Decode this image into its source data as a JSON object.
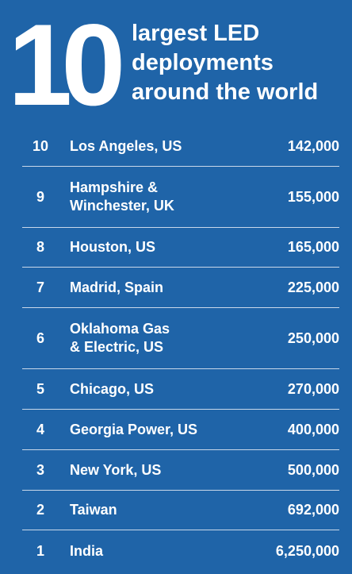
{
  "header": {
    "big_number": "10",
    "title": "largest LED\ndeployments\naround the world"
  },
  "rows": [
    {
      "rank": "10",
      "place": "Los Angeles, US",
      "count": "142,000"
    },
    {
      "rank": "9",
      "place": "Hampshire &\nWinchester, UK",
      "count": "155,000"
    },
    {
      "rank": "8",
      "place": "Houston, US",
      "count": "165,000"
    },
    {
      "rank": "7",
      "place": "Madrid, Spain",
      "count": "225,000"
    },
    {
      "rank": "6",
      "place": "Oklahoma Gas\n& Electric, US",
      "count": "250,000"
    },
    {
      "rank": "5",
      "place": "Chicago, US",
      "count": "270,000"
    },
    {
      "rank": "4",
      "place": "Georgia Power, US",
      "count": "400,000"
    },
    {
      "rank": "3",
      "place": "New York, US",
      "count": "500,000"
    },
    {
      "rank": "2",
      "place": "Taiwan",
      "count": "692,000"
    },
    {
      "rank": "1",
      "place": "India",
      "count": "6,250,000"
    }
  ],
  "colors": {
    "background": "#1f64a8",
    "text": "#ffffff",
    "divider": "#c9d8ea"
  }
}
